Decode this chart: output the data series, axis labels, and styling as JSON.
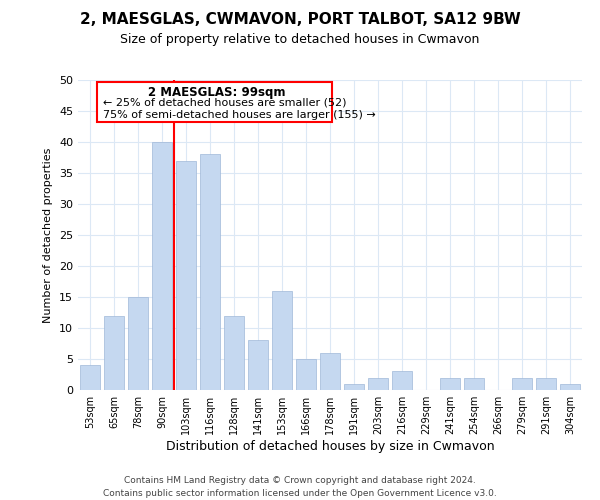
{
  "title": "2, MAESGLAS, CWMAVON, PORT TALBOT, SA12 9BW",
  "subtitle": "Size of property relative to detached houses in Cwmavon",
  "xlabel": "Distribution of detached houses by size in Cwmavon",
  "ylabel": "Number of detached properties",
  "bar_color": "#c5d8f0",
  "bar_edge_color": "#a0b8d8",
  "categories": [
    "53sqm",
    "65sqm",
    "78sqm",
    "90sqm",
    "103sqm",
    "116sqm",
    "128sqm",
    "141sqm",
    "153sqm",
    "166sqm",
    "178sqm",
    "191sqm",
    "203sqm",
    "216sqm",
    "229sqm",
    "241sqm",
    "254sqm",
    "266sqm",
    "279sqm",
    "291sqm",
    "304sqm"
  ],
  "values": [
    4,
    12,
    15,
    40,
    37,
    38,
    12,
    8,
    16,
    5,
    6,
    1,
    2,
    3,
    0,
    2,
    2,
    0,
    2,
    2,
    1
  ],
  "ylim": [
    0,
    50
  ],
  "yticks": [
    0,
    5,
    10,
    15,
    20,
    25,
    30,
    35,
    40,
    45,
    50
  ],
  "red_line_index": 4,
  "annotation_title": "2 MAESGLAS: 99sqm",
  "annotation_line1": "← 25% of detached houses are smaller (52)",
  "annotation_line2": "75% of semi-detached houses are larger (155) →",
  "footer1": "Contains HM Land Registry data © Crown copyright and database right 2024.",
  "footer2": "Contains public sector information licensed under the Open Government Licence v3.0.",
  "grid_color": "#dce8f5",
  "background_color": "#ffffff"
}
